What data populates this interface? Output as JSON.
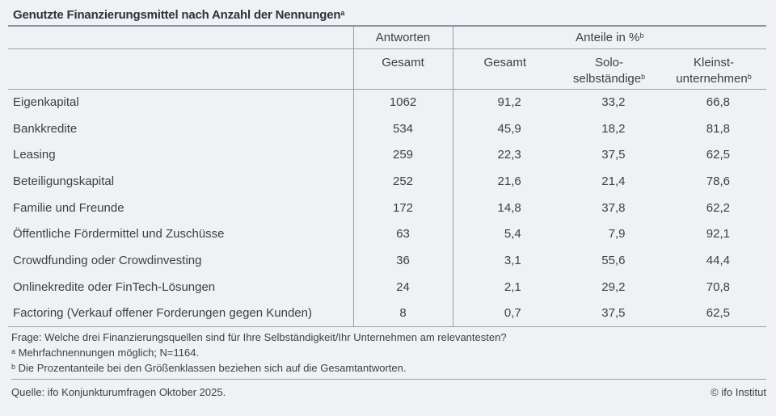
{
  "title": {
    "text": "Genutzte Finanzierungsmittel nach Anzahl der Nennungen",
    "superscript": "a"
  },
  "table": {
    "group_headers": {
      "antworten": "Antworten",
      "anteile": "Anteile in %",
      "anteile_sup": "b"
    },
    "columns": {
      "antworten_gesamt": "Gesamt",
      "anteile_gesamt": "Gesamt",
      "solo_line1": "Solo-",
      "solo_line2": "selbständige",
      "solo_sup": "b",
      "kleinst_line1": "Kleinst-",
      "kleinst_line2": "unternehmen",
      "kleinst_sup": "b"
    },
    "rows": [
      {
        "label": "Eigenkapital",
        "antworten": "1062",
        "anteil_gesamt": "91,2",
        "anteil_solo": "33,2",
        "anteil_kleinst": "66,8"
      },
      {
        "label": "Bankkredite",
        "antworten": "534",
        "anteil_gesamt": "45,9",
        "anteil_solo": "18,2",
        "anteil_kleinst": "81,8"
      },
      {
        "label": "Leasing",
        "antworten": "259",
        "anteil_gesamt": "22,3",
        "anteil_solo": "37,5",
        "anteil_kleinst": "62,5"
      },
      {
        "label": "Beteiligungskapital",
        "antworten": "252",
        "anteil_gesamt": "21,6",
        "anteil_solo": "21,4",
        "anteil_kleinst": "78,6"
      },
      {
        "label": "Familie und Freunde",
        "antworten": "172",
        "anteil_gesamt": "14,8",
        "anteil_solo": "37,8",
        "anteil_kleinst": "62,2"
      },
      {
        "label": "Öffentliche Fördermittel und Zuschüsse",
        "antworten": "63",
        "anteil_gesamt": "5,4",
        "anteil_solo": "7,9",
        "anteil_kleinst": "92,1"
      },
      {
        "label": "Crowdfunding oder Crowdinvesting",
        "antworten": "36",
        "anteil_gesamt": "3,1",
        "anteil_solo": "55,6",
        "anteil_kleinst": "44,4"
      },
      {
        "label": "Onlinekredite oder FinTech-Lösungen",
        "antworten": "24",
        "anteil_gesamt": "2,1",
        "anteil_solo": "29,2",
        "anteil_kleinst": "70,8"
      },
      {
        "label": "Factoring (Verkauf offener Forderungen gegen Kunden)",
        "antworten": "8",
        "anteil_gesamt": "0,7",
        "anteil_solo": "37,5",
        "anteil_kleinst": "62,5"
      }
    ]
  },
  "notes": {
    "question": "Frage: Welche drei Finanzierungsquellen sind für Ihre Selbständigkeit/Ihr Unternehmen am relevantesten?",
    "note_a_sup": "a",
    "note_a": " Mehrfachnennungen möglich; N=1164.",
    "note_b_sup": "b",
    "note_b": " Die Prozentanteile bei den Größenklassen beziehen sich auf die Gesamtantworten."
  },
  "footer": {
    "source": "Quelle: ifo Konjunkturumfragen Oktober 2025.",
    "copyright": "© ifo Institut"
  },
  "colors": {
    "background": "#eff1f4",
    "text": "#3c4048",
    "rule": "#9ba0ab"
  },
  "chart_data": {
    "type": "table",
    "title": "Genutzte Finanzierungsmittel nach Anzahl der Nennungen",
    "column_groups": [
      "Antworten",
      "Anteile in %"
    ],
    "columns": [
      "Antworten: Gesamt",
      "Anteile in %: Gesamt",
      "Anteile in %: Solo-selbständige",
      "Anteile in %: Kleinstunternehmen"
    ],
    "rows": [
      [
        "Eigenkapital",
        1062,
        91.2,
        33.2,
        66.8
      ],
      [
        "Bankkredite",
        534,
        45.9,
        18.2,
        81.8
      ],
      [
        "Leasing",
        259,
        22.3,
        37.5,
        62.5
      ],
      [
        "Beteiligungskapital",
        252,
        21.6,
        21.4,
        78.6
      ],
      [
        "Familie und Freunde",
        172,
        14.8,
        37.8,
        62.2
      ],
      [
        "Öffentliche Fördermittel und Zuschüsse",
        63,
        5.4,
        7.9,
        92.1
      ],
      [
        "Crowdfunding oder Crowdinvesting",
        36,
        3.1,
        55.6,
        44.4
      ],
      [
        "Onlinekredite oder FinTech-Lösungen",
        24,
        2.1,
        29.2,
        70.8
      ],
      [
        "Factoring (Verkauf offener Forderungen gegen Kunden)",
        8,
        0.7,
        37.5,
        62.5
      ]
    ],
    "notes": [
      "Frage: Welche drei Finanzierungsquellen sind für Ihre Selbständigkeit/Ihr Unternehmen am relevantesten?",
      "a Mehrfachnennungen möglich; N=1164.",
      "b Die Prozentanteile bei den Größenklassen beziehen sich auf die Gesamtantworten."
    ],
    "source": "Quelle: ifo Konjunkturumfragen Oktober 2025.",
    "copyright": "© ifo Institut"
  }
}
